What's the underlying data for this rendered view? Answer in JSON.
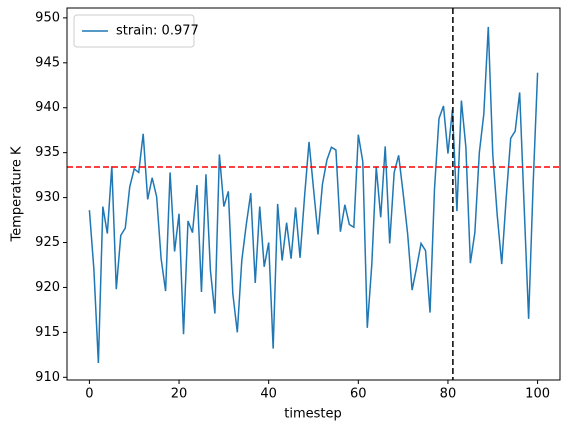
{
  "chart_data": {
    "type": "line",
    "xlabel": "timestep",
    "ylabel": "Temperature K",
    "x": [
      0,
      1,
      2,
      3,
      4,
      5,
      6,
      7,
      8,
      9,
      10,
      11,
      12,
      13,
      14,
      15,
      16,
      17,
      18,
      19,
      20,
      21,
      22,
      23,
      24,
      25,
      26,
      27,
      28,
      29,
      30,
      31,
      32,
      33,
      34,
      35,
      36,
      37,
      38,
      39,
      40,
      41,
      42,
      43,
      44,
      45,
      46,
      47,
      48,
      49,
      50,
      51,
      52,
      53,
      54,
      55,
      56,
      57,
      58,
      59,
      60,
      61,
      62,
      63,
      64,
      65,
      66,
      67,
      68,
      69,
      70,
      71,
      72,
      73,
      74,
      75,
      76,
      77,
      78,
      79,
      80,
      81,
      82,
      83,
      84,
      85,
      86,
      87,
      88,
      89,
      90,
      91,
      92,
      93,
      94,
      95,
      96,
      97,
      98,
      99,
      100
    ],
    "series": [
      {
        "name": "strain: 0.977",
        "color": "#1f77b4",
        "values": [
          928.6,
          922,
          911.6,
          929,
          926,
          933.5,
          919.8,
          925.8,
          926.6,
          931.2,
          933.2,
          932.8,
          937.1,
          929.8,
          932.2,
          930.1,
          923.2,
          919.6,
          932.8,
          924,
          928.2,
          914.8,
          927.4,
          926.1,
          931.4,
          919.5,
          932.6,
          921.9,
          917.1,
          934.8,
          929,
          930.7,
          919.3,
          915,
          923,
          927,
          930.5,
          920.5,
          929,
          922.3,
          925,
          913.2,
          929.3,
          923,
          927.2,
          923.2,
          928.9,
          923.3,
          930.1,
          936.2,
          931,
          925.9,
          931.5,
          934.2,
          935.6,
          935.3,
          926.2,
          929.2,
          927,
          926.7,
          937,
          934,
          915.5,
          922.5,
          933.4,
          927.8,
          935.7,
          924.9,
          932.8,
          934.7,
          930.5,
          926,
          919.7,
          922.2,
          924.9,
          924.1,
          917.2,
          931,
          938.8,
          940.2,
          934.9,
          939.8,
          928.5,
          940.8,
          935.6,
          922.7,
          926.1,
          935,
          939.3,
          949,
          934.8,
          928,
          922.6,
          930,
          936.6,
          937.4,
          941.7,
          929,
          916.5,
          931.4,
          943.9
        ]
      }
    ],
    "hlines": [
      {
        "value": 933.4,
        "color": "#ff0000"
      }
    ],
    "vlines": [
      {
        "value": 81.1,
        "color": "#000000"
      }
    ],
    "xlim": [
      -5,
      105
    ],
    "ylim": [
      909.7,
      951.1
    ],
    "xticks": [
      0,
      20,
      40,
      60,
      80,
      100
    ],
    "yticks": [
      910,
      915,
      920,
      925,
      930,
      935,
      940,
      945,
      950
    ],
    "legend": "upper left"
  }
}
